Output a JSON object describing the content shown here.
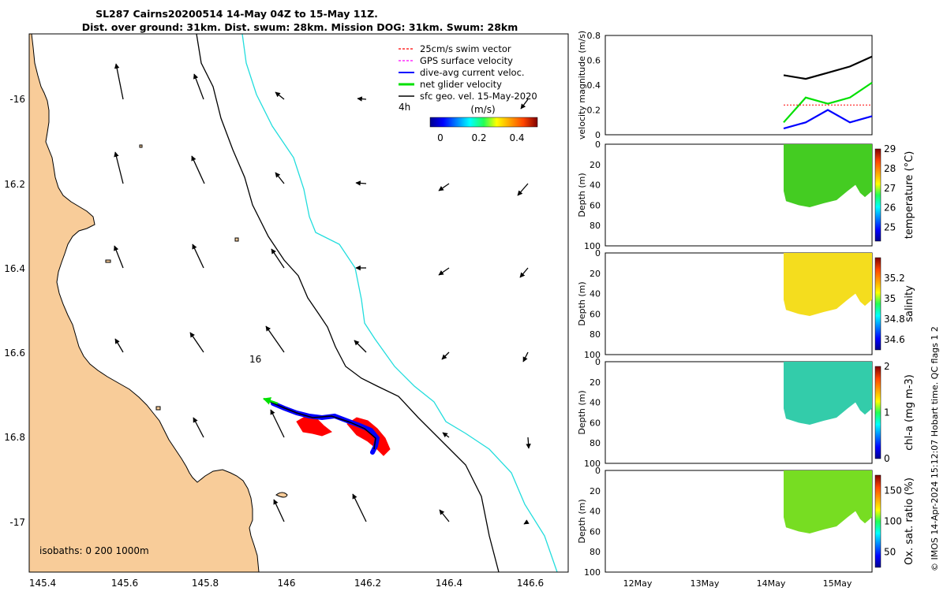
{
  "title": {
    "line1": "SL287 Cairns20200514 14-May 04Z to 15-May 11Z.",
    "line2": "Dist. over ground: 31km. Dist. swum: 28km. Mission DOG: 31km. Swum: 28km"
  },
  "map": {
    "lon_ticks": [
      "145.4",
      "145.6",
      "145.8",
      "146",
      "146.2",
      "146.4",
      "146.6"
    ],
    "lat_ticks": [
      "-16",
      "16.2",
      "16.4",
      "16.6",
      "16.8",
      "-17"
    ],
    "isobath_label": "isobaths: 0   200  1000m",
    "marker_16": "16",
    "marker_4h": "4h",
    "legend": [
      {
        "label": "25cm/s swim vector",
        "color": "#ff0000"
      },
      {
        "label": "GPS surface velocity",
        "color": "#ff00ff"
      },
      {
        "label": "dive-avg current veloc.",
        "color": "#0000ff"
      },
      {
        "label": "net glider velocity",
        "color": "#00e000"
      },
      {
        "label": "sfc geo. vel. 15-May-2020",
        "color": "#000000"
      }
    ],
    "colorbar": {
      "label": "(m/s)",
      "ticks": [
        "0",
        "0.2",
        "0.4"
      ]
    },
    "colors": {
      "land": "#f8cc99",
      "isobath200": "#000000",
      "isobath1000": "#22dddd"
    }
  },
  "chart_data": [
    {
      "type": "line",
      "ylabel": "velocity magnitude (m/s)",
      "ylim": [
        0,
        0.8
      ],
      "yticks": [
        "0",
        "0.2",
        "0.4",
        "0.6",
        "0.8"
      ],
      "x_dates": [
        "14-May 04:00",
        "14-May 12:00",
        "14-May 20:00",
        "15-May 04:00",
        "15-May 11:00"
      ],
      "series": [
        {
          "color": "#000000",
          "values": [
            0.48,
            0.45,
            0.5,
            0.55,
            0.63
          ]
        },
        {
          "color": "#00e000",
          "values": [
            0.1,
            0.3,
            0.25,
            0.3,
            0.42
          ]
        },
        {
          "color": "#0000ff",
          "values": [
            0.05,
            0.1,
            0.2,
            0.1,
            0.15
          ]
        },
        {
          "color": "#ff0000",
          "values": [
            0.24,
            0.24,
            0.24,
            0.24,
            0.24
          ]
        }
      ]
    },
    {
      "type": "heatmap",
      "ylabel": "Depth (m)",
      "clabel": "temperature (°C)",
      "cticks": [
        "25",
        "26",
        "27",
        "28",
        "29"
      ],
      "clim": [
        24.3,
        29
      ],
      "value": 27.0,
      "fill": "#44cc22"
    },
    {
      "type": "heatmap",
      "ylabel": "Depth (m)",
      "clabel": "salinity",
      "cticks": [
        "34.6",
        "34.8",
        "35",
        "35.2"
      ],
      "clim": [
        34.5,
        35.4
      ],
      "value": 35.1,
      "fill": "#f4dd1e"
    },
    {
      "type": "heatmap",
      "ylabel": "Depth (m)",
      "clabel": "chl-a (mg m-3)",
      "cticks": [
        "0",
        "1",
        "2"
      ],
      "clim": [
        0,
        2
      ],
      "value": 0.85,
      "fill": "#33ccaa"
    },
    {
      "type": "heatmap",
      "ylabel": "Depth (m)",
      "clabel": "Ox. sat. ratio (%)",
      "cticks": [
        "50",
        "100",
        "150"
      ],
      "clim": [
        25,
        175
      ],
      "value": 115,
      "fill": "#77dd22"
    }
  ],
  "depth_ticks": [
    "0",
    "20",
    "40",
    "60",
    "80",
    "100"
  ],
  "time_ticks": [
    "12May",
    "13May",
    "14May",
    "15May"
  ],
  "footer_note": "© IMOS 14-Apr-2024 15:12:07 Hobart time. QC flags 1  2"
}
